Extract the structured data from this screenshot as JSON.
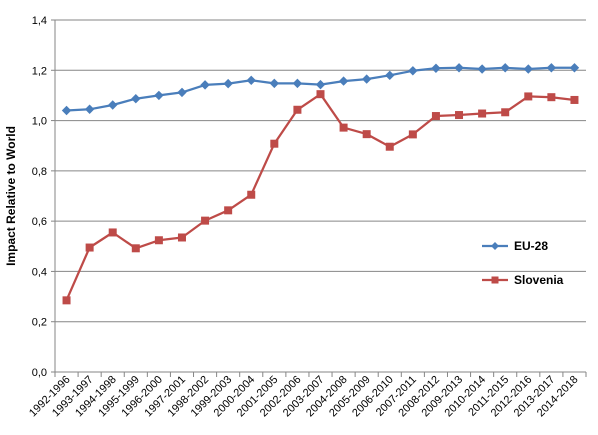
{
  "chart_data": {
    "type": "line",
    "ylabel": "Impact Relative to World",
    "xlabel": "",
    "ylim": [
      0,
      1.4
    ],
    "y_tick_step": 0.2,
    "y_tick_labels": [
      "0,0",
      "0,2",
      "0,4",
      "0,6",
      "0,8",
      "1,0",
      "1,2",
      "1,4"
    ],
    "grid": "horizontal",
    "legend_position": "right",
    "categories": [
      "1992-1996",
      "1993-1997",
      "1994-1998",
      "1995-1999",
      "1996-2000",
      "1997-2001",
      "1998-2002",
      "1999-2003",
      "2000-2004",
      "2001-2005",
      "2002-2006",
      "2003-2007",
      "2004-2008",
      "2005-2009",
      "2006-2010",
      "2007-2011",
      "2008-2012",
      "2009-2013",
      "2010-2014",
      "2011-2015",
      "2012-2016",
      "2013-2017",
      "2014-2018"
    ],
    "series": [
      {
        "name": "EU-28",
        "color": "#4a7ebb",
        "marker": "diamond",
        "values": [
          1.04,
          1.045,
          1.062,
          1.087,
          1.1,
          1.112,
          1.142,
          1.147,
          1.16,
          1.148,
          1.148,
          1.143,
          1.157,
          1.165,
          1.18,
          1.198,
          1.208,
          1.21,
          1.205,
          1.21,
          1.205,
          1.21,
          1.21
        ]
      },
      {
        "name": "Slovenia",
        "color": "#be4b48",
        "marker": "square",
        "values": [
          0.285,
          0.495,
          0.555,
          0.492,
          0.524,
          0.535,
          0.602,
          0.643,
          0.705,
          0.908,
          1.043,
          1.105,
          0.972,
          0.946,
          0.896,
          0.945,
          1.018,
          1.022,
          1.028,
          1.033,
          1.096,
          1.093,
          1.082
        ]
      }
    ]
  }
}
